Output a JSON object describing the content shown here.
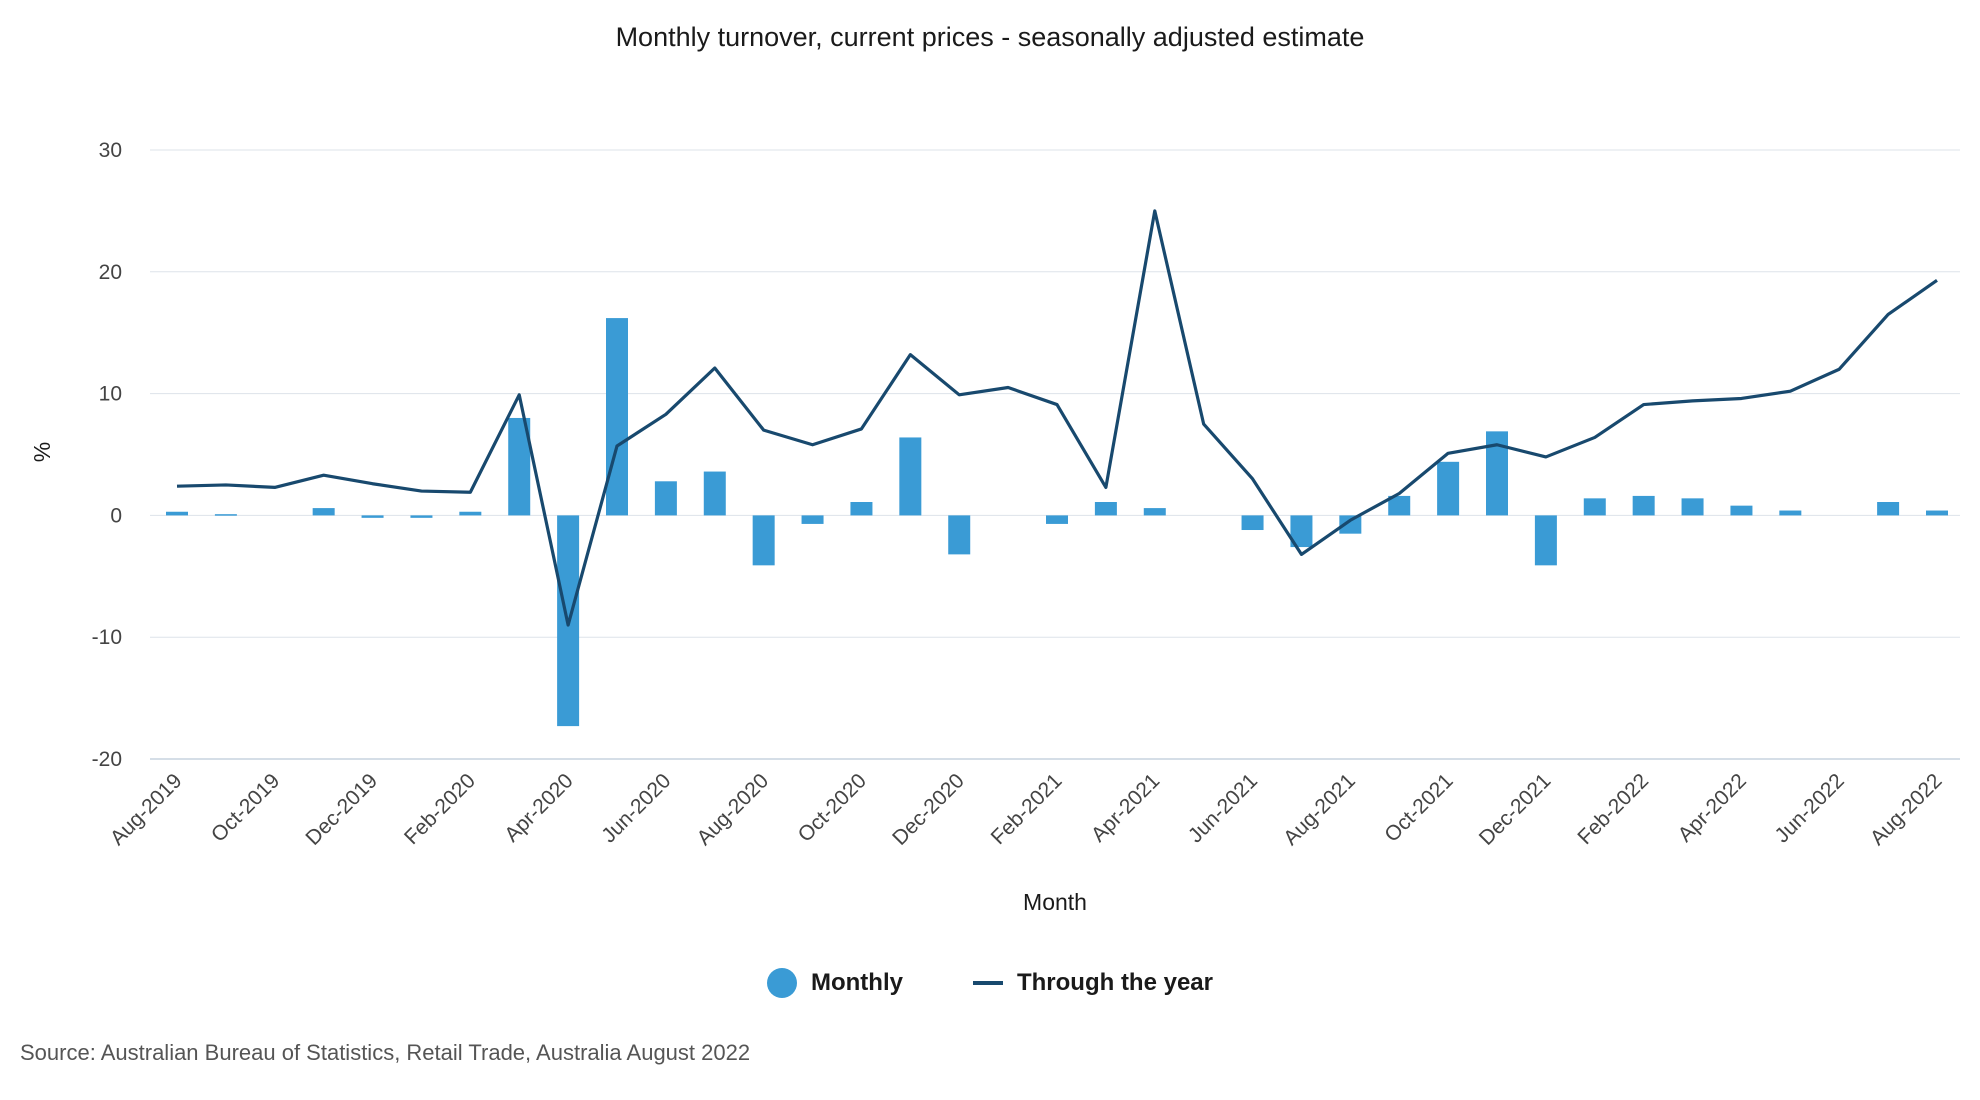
{
  "chart_data": {
    "type": "bar",
    "title": "Monthly turnover, current prices - seasonally adjusted estimate",
    "xlabel": "Month",
    "ylabel": "%",
    "ylim": [
      -20,
      30
    ],
    "yticks": [
      30,
      20,
      10,
      0,
      -10,
      -20
    ],
    "grid": true,
    "legend_position": "bottom",
    "categories": [
      "Aug-2019",
      "Sep-2019",
      "Oct-2019",
      "Nov-2019",
      "Dec-2019",
      "Jan-2020",
      "Feb-2020",
      "Mar-2020",
      "Apr-2020",
      "May-2020",
      "Jun-2020",
      "Jul-2020",
      "Aug-2020",
      "Sep-2020",
      "Oct-2020",
      "Nov-2020",
      "Dec-2020",
      "Jan-2021",
      "Feb-2021",
      "Mar-2021",
      "Apr-2021",
      "May-2021",
      "Jun-2021",
      "Jul-2021",
      "Aug-2021",
      "Sep-2021",
      "Oct-2021",
      "Nov-2021",
      "Dec-2021",
      "Jan-2022",
      "Feb-2022",
      "Mar-2022",
      "Apr-2022",
      "May-2022",
      "Jun-2022",
      "Jul-2022",
      "Aug-2022"
    ],
    "xtick_labels": [
      "Aug-2019",
      "",
      "Oct-2019",
      "",
      "Dec-2019",
      "",
      "Feb-2020",
      "",
      "Apr-2020",
      "",
      "Jun-2020",
      "",
      "Aug-2020",
      "",
      "Oct-2020",
      "",
      "Dec-2020",
      "",
      "Feb-2021",
      "",
      "Apr-2021",
      "",
      "Jun-2021",
      "",
      "Aug-2021",
      "",
      "Oct-2021",
      "",
      "Dec-2021",
      "",
      "Feb-2022",
      "",
      "Apr-2022",
      "",
      "Jun-2022",
      "",
      "Aug-2022"
    ],
    "series": [
      {
        "name": "Monthly",
        "type": "bar",
        "color": "#3a9bd5",
        "values": [
          0.3,
          0.1,
          0.0,
          0.6,
          -0.2,
          -0.2,
          0.3,
          8.0,
          -17.3,
          16.2,
          2.8,
          3.6,
          -4.1,
          -0.7,
          1.1,
          6.4,
          -3.2,
          0.0,
          -0.7,
          1.1,
          0.6,
          0.0,
          -1.2,
          -2.6,
          -1.5,
          1.6,
          4.4,
          6.9,
          -4.1,
          1.4,
          1.6,
          1.4,
          0.8,
          0.4,
          0.0,
          1.1,
          0.4
        ]
      },
      {
        "name": "Through the year",
        "type": "line",
        "color": "#18496e",
        "values": [
          2.4,
          2.5,
          2.3,
          3.3,
          2.6,
          2.0,
          1.9,
          9.9,
          -9.0,
          5.7,
          8.3,
          12.1,
          7.0,
          5.8,
          7.1,
          13.2,
          9.9,
          10.5,
          9.1,
          2.3,
          25.0,
          7.5,
          3.0,
          -3.2,
          -0.4,
          1.8,
          5.1,
          5.8,
          4.8,
          6.4,
          9.1,
          9.4,
          9.6,
          10.2,
          12.0,
          16.5,
          19.3
        ]
      }
    ]
  },
  "legend": {
    "monthly_label": "Monthly",
    "through_year_label": "Through the year"
  },
  "source": "Source: Australian Bureau of Statistics, Retail Trade, Australia August 2022"
}
